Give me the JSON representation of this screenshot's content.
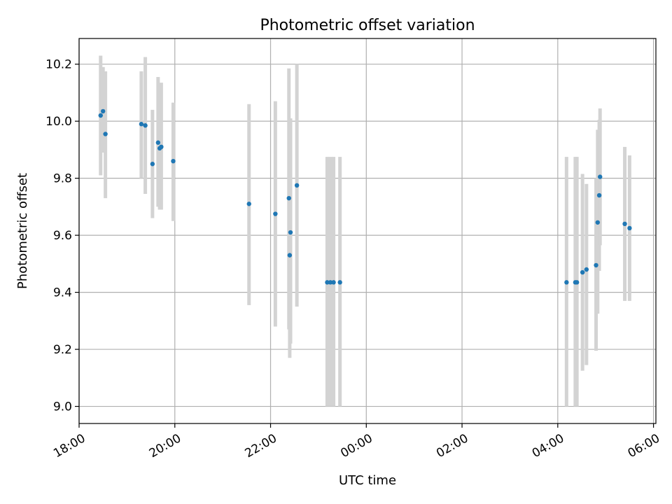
{
  "chart_data": {
    "type": "scatter",
    "title": "Photometric offset variation",
    "xlabel": "UTC time",
    "ylabel": "Photometric offset",
    "x_axis_kind": "time",
    "xlim_hours": [
      18.0,
      30.05
    ],
    "ylim": [
      8.94,
      10.29
    ],
    "x_ticks": [
      {
        "hour": 18,
        "label": "18:00"
      },
      {
        "hour": 20,
        "label": "20:00"
      },
      {
        "hour": 22,
        "label": "22:00"
      },
      {
        "hour": 24,
        "label": "00:00"
      },
      {
        "hour": 26,
        "label": "02:00"
      },
      {
        "hour": 28,
        "label": "04:00"
      },
      {
        "hour": 30,
        "label": "06:00"
      }
    ],
    "y_ticks": [
      {
        "value": 9.0,
        "label": "9.0"
      },
      {
        "value": 9.2,
        "label": "9.2"
      },
      {
        "value": 9.4,
        "label": "9.4"
      },
      {
        "value": 9.6,
        "label": "9.6"
      },
      {
        "value": 9.8,
        "label": "9.8"
      },
      {
        "value": 10.0,
        "label": "10.0"
      },
      {
        "value": 10.2,
        "label": "10.2"
      }
    ],
    "grid": true,
    "series": [
      {
        "color": "#1f77b4",
        "error_color": "#d3d3d3",
        "points": [
          {
            "time": "18:27",
            "y": 10.02,
            "ylow": 9.81,
            "yhigh": 10.23
          },
          {
            "time": "18:30",
            "y": 10.035,
            "ylow": 9.89,
            "yhigh": 10.19
          },
          {
            "time": "18:33",
            "y": 9.955,
            "ylow": 9.73,
            "yhigh": 10.175
          },
          {
            "time": "19:18",
            "y": 9.99,
            "ylow": 9.8,
            "yhigh": 10.175
          },
          {
            "time": "19:23",
            "y": 9.985,
            "ylow": 9.745,
            "yhigh": 10.225
          },
          {
            "time": "19:32",
            "y": 9.85,
            "ylow": 9.66,
            "yhigh": 10.04
          },
          {
            "time": "19:39",
            "y": 9.925,
            "ylow": 9.7,
            "yhigh": 10.155
          },
          {
            "time": "19:41",
            "y": 9.905,
            "ylow": 9.69,
            "yhigh": 10.13
          },
          {
            "time": "19:43",
            "y": 9.91,
            "ylow": 9.69,
            "yhigh": 10.135
          },
          {
            "time": "19:58",
            "y": 9.86,
            "ylow": 9.65,
            "yhigh": 10.065
          },
          {
            "time": "21:33",
            "y": 9.71,
            "ylow": 9.355,
            "yhigh": 10.06
          },
          {
            "time": "22:06",
            "y": 9.675,
            "ylow": 9.28,
            "yhigh": 10.07
          },
          {
            "time": "22:23",
            "y": 9.73,
            "ylow": 9.27,
            "yhigh": 10.185
          },
          {
            "time": "22:24",
            "y": 9.53,
            "ylow": 9.17,
            "yhigh": 9.97
          },
          {
            "time": "22:25",
            "y": 9.61,
            "ylow": 9.22,
            "yhigh": 10.01
          },
          {
            "time": "22:33",
            "y": 9.775,
            "ylow": 9.35,
            "yhigh": 10.2
          },
          {
            "time": "23:11",
            "y": 9.435,
            "ylow": 9.0,
            "yhigh": 9.875
          },
          {
            "time": "23:15",
            "y": 9.435,
            "ylow": 9.0,
            "yhigh": 9.875
          },
          {
            "time": "23:19",
            "y": 9.435,
            "ylow": 9.0,
            "yhigh": 9.875
          },
          {
            "time": "23:27",
            "y": 9.435,
            "ylow": 9.0,
            "yhigh": 9.875
          },
          {
            "time": "04:11",
            "y": 9.435,
            "ylow": 9.0,
            "yhigh": 9.875
          },
          {
            "time": "04:22",
            "y": 9.435,
            "ylow": 9.0,
            "yhigh": 9.875
          },
          {
            "time": "04:24",
            "y": 9.435,
            "ylow": 9.0,
            "yhigh": 9.875
          },
          {
            "time": "04:31",
            "y": 9.47,
            "ylow": 9.125,
            "yhigh": 9.815
          },
          {
            "time": "04:36",
            "y": 9.48,
            "ylow": 9.145,
            "yhigh": 9.78
          },
          {
            "time": "04:48",
            "y": 9.495,
            "ylow": 9.195,
            "yhigh": 9.8
          },
          {
            "time": "04:50",
            "y": 9.645,
            "ylow": 9.325,
            "yhigh": 9.97
          },
          {
            "time": "04:52",
            "y": 9.74,
            "ylow": 9.475,
            "yhigh": 10.005
          },
          {
            "time": "04:53",
            "y": 9.805,
            "ylow": 9.565,
            "yhigh": 10.045
          },
          {
            "time": "05:24",
            "y": 9.64,
            "ylow": 9.37,
            "yhigh": 9.91
          },
          {
            "time": "05:30",
            "y": 9.625,
            "ylow": 9.37,
            "yhigh": 9.88
          }
        ]
      }
    ]
  }
}
